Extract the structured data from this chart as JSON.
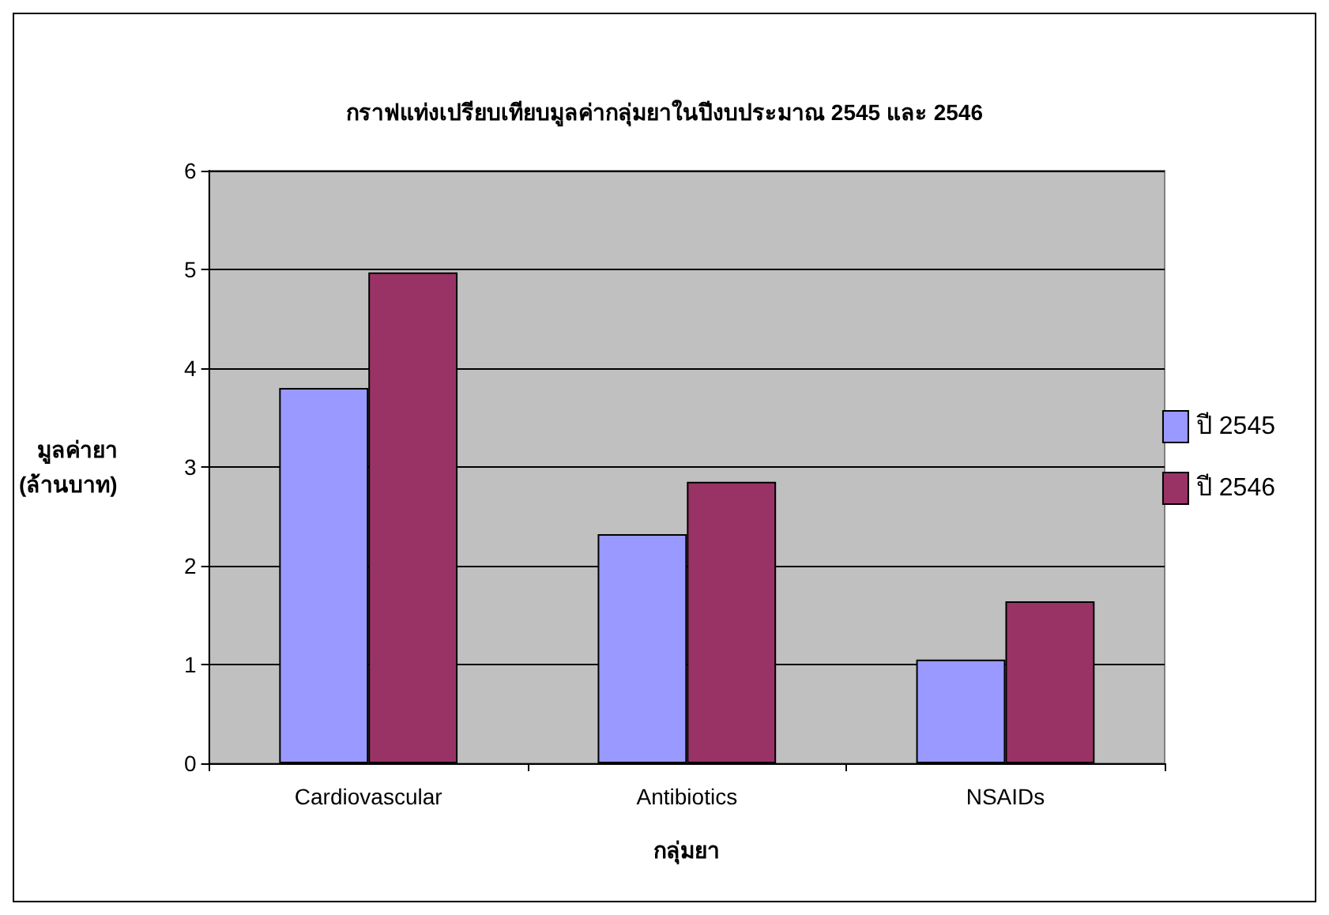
{
  "chart_data": {
    "type": "bar",
    "title": "กราฟแท่งเปรียบเทียบมูลค่ากลุ่มยาในปีงบประมาณ 2545 และ 2546",
    "xlabel": "กลุ่มยา",
    "ylabel": "มูลค่ายา (ล้านบาท)",
    "categories": [
      "Cardiovascular",
      "Antibiotics",
      "NSAIDs"
    ],
    "series": [
      {
        "name": "ปี 2545",
        "color": "#9999ff",
        "values": [
          3.8,
          2.32,
          1.05
        ]
      },
      {
        "name": "ปี 2546",
        "color": "#993366",
        "values": [
          4.97,
          2.85,
          1.64
        ]
      }
    ],
    "ylim": [
      0,
      6
    ],
    "yticks": [
      0,
      1,
      2,
      3,
      4,
      5,
      6
    ],
    "grid": "y",
    "legend": "right"
  }
}
